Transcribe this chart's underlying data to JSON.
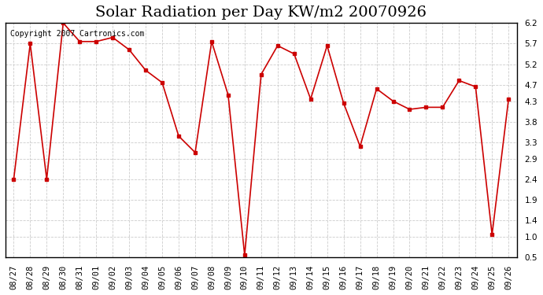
{
  "title": "Solar Radiation per Day KW/m2 20070926",
  "copyright_text": "Copyright 2007 Cartronics.com",
  "x_labels": [
    "08/27",
    "08/28",
    "08/29",
    "08/30",
    "08/31",
    "09/01",
    "09/02",
    "09/03",
    "09/04",
    "09/05",
    "09/06",
    "09/07",
    "09/08",
    "09/09",
    "09/10",
    "09/11",
    "09/12",
    "09/13",
    "09/14",
    "09/15",
    "09/16",
    "09/17",
    "09/18",
    "09/19",
    "09/20",
    "09/21",
    "09/22",
    "09/23",
    "09/24",
    "09/25",
    "09/26"
  ],
  "y_values": [
    2.4,
    5.7,
    2.4,
    6.2,
    5.75,
    5.75,
    5.85,
    5.55,
    5.05,
    4.75,
    3.45,
    3.05,
    5.75,
    4.45,
    0.55,
    4.95,
    5.65,
    5.45,
    4.35,
    5.65,
    4.25,
    3.2,
    4.6,
    4.3,
    4.1,
    4.15,
    4.15,
    4.8,
    4.65,
    1.05,
    4.35
  ],
  "line_color": "#cc0000",
  "marker": "s",
  "marker_size": 3,
  "marker_color": "#cc0000",
  "background_color": "#ffffff",
  "grid_color": "#cccccc",
  "ylim": [
    0.5,
    6.2
  ],
  "yticks": [
    0.5,
    1.0,
    1.4,
    1.9,
    2.4,
    2.9,
    3.3,
    3.8,
    4.3,
    4.7,
    5.2,
    5.7,
    6.2
  ],
  "title_fontsize": 14,
  "tick_fontsize": 7.5,
  "copyright_fontsize": 7
}
